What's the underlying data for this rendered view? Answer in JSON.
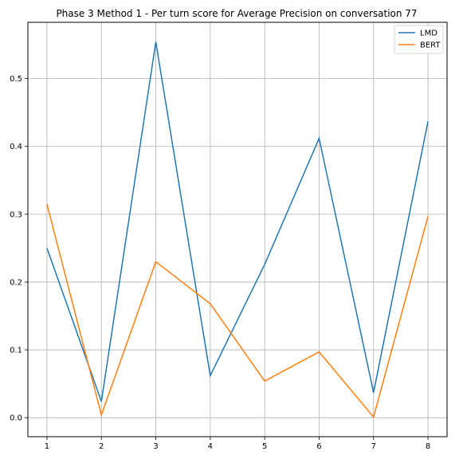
{
  "chart_data": {
    "type": "line",
    "title": "Phase 3 Method 1 - Per turn score for Average Precision on conversation 77",
    "xlabel": "",
    "ylabel": "",
    "x": [
      1,
      2,
      3,
      4,
      5,
      6,
      7,
      8
    ],
    "xticks": [
      "1",
      "2",
      "3",
      "4",
      "5",
      "6",
      "7",
      "8"
    ],
    "yticks": [
      "0.0",
      "0.1",
      "0.2",
      "0.3",
      "0.4",
      "0.5"
    ],
    "xlim": [
      0.65,
      8.35
    ],
    "ylim": [
      -0.028,
      0.583
    ],
    "grid": true,
    "legend_position": "top-right",
    "series": [
      {
        "name": "LMD",
        "color": "#1f77b4",
        "values": [
          0.25,
          0.024,
          0.554,
          0.062,
          0.226,
          0.412,
          0.037,
          0.437
        ]
      },
      {
        "name": "BERT",
        "color": "#ff7f0e",
        "values": [
          0.315,
          0.004,
          0.23,
          0.168,
          0.054,
          0.097,
          0.001,
          0.297
        ]
      }
    ]
  }
}
